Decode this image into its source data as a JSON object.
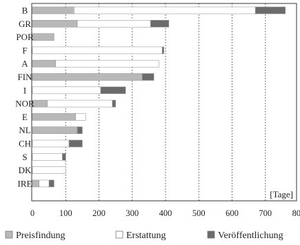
{
  "chart_data": {
    "type": "bar",
    "orientation": "horizontal",
    "stacked": true,
    "categories": [
      "B",
      "GR",
      "POR",
      "F",
      "A",
      "FIN",
      "I",
      "NOR",
      "E",
      "NL",
      "CH",
      "S",
      "DK",
      "IRE"
    ],
    "series": [
      {
        "name": "Preisfindung",
        "color": "#b8b8b8",
        "values": [
          125,
          135,
          65,
          0,
          70,
          330,
          0,
          45,
          130,
          135,
          0,
          0,
          0,
          20
        ]
      },
      {
        "name": "Erstattung",
        "color": "#ffffff",
        "values": [
          545,
          220,
          0,
          390,
          310,
          0,
          205,
          195,
          30,
          0,
          110,
          90,
          100,
          30
        ]
      },
      {
        "name": "Veröffentlichung",
        "color": "#6b6b6b",
        "values": [
          90,
          55,
          0,
          5,
          0,
          35,
          75,
          10,
          0,
          15,
          40,
          10,
          0,
          15
        ]
      }
    ],
    "xlim": [
      0,
      800
    ],
    "x_ticks": [
      "0",
      "100",
      "200",
      "300",
      "400",
      "500",
      "600",
      "700",
      "800"
    ],
    "unit_label": "[Tage]",
    "grid": "vertical dotted lines",
    "legend_position": "bottom"
  }
}
